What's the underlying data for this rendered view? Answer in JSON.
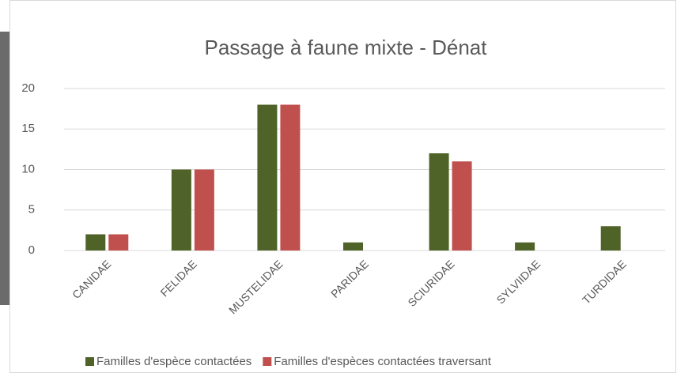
{
  "chart_data": {
    "type": "bar",
    "title": "Passage à faune mixte - Dénat",
    "categories": [
      "CANIDAE",
      "FELIDAE",
      "MUSTELIDAE",
      "PARIDAE",
      "SCIURIDAE",
      "SYLVIIDAE",
      "TURDIDAE"
    ],
    "series": [
      {
        "name": "Familles d'espèce contactées",
        "color": "#4f6228",
        "values": [
          2,
          10,
          18,
          1,
          12,
          1,
          3
        ]
      },
      {
        "name": "Familles d'espèces contactées traversant",
        "color": "#c0504d",
        "values": [
          2,
          10,
          18,
          0,
          11,
          0,
          0
        ]
      }
    ],
    "ylim": [
      0,
      20
    ],
    "yticks": [
      0,
      5,
      10,
      15,
      20
    ],
    "grid": true,
    "legend": "bottom"
  }
}
